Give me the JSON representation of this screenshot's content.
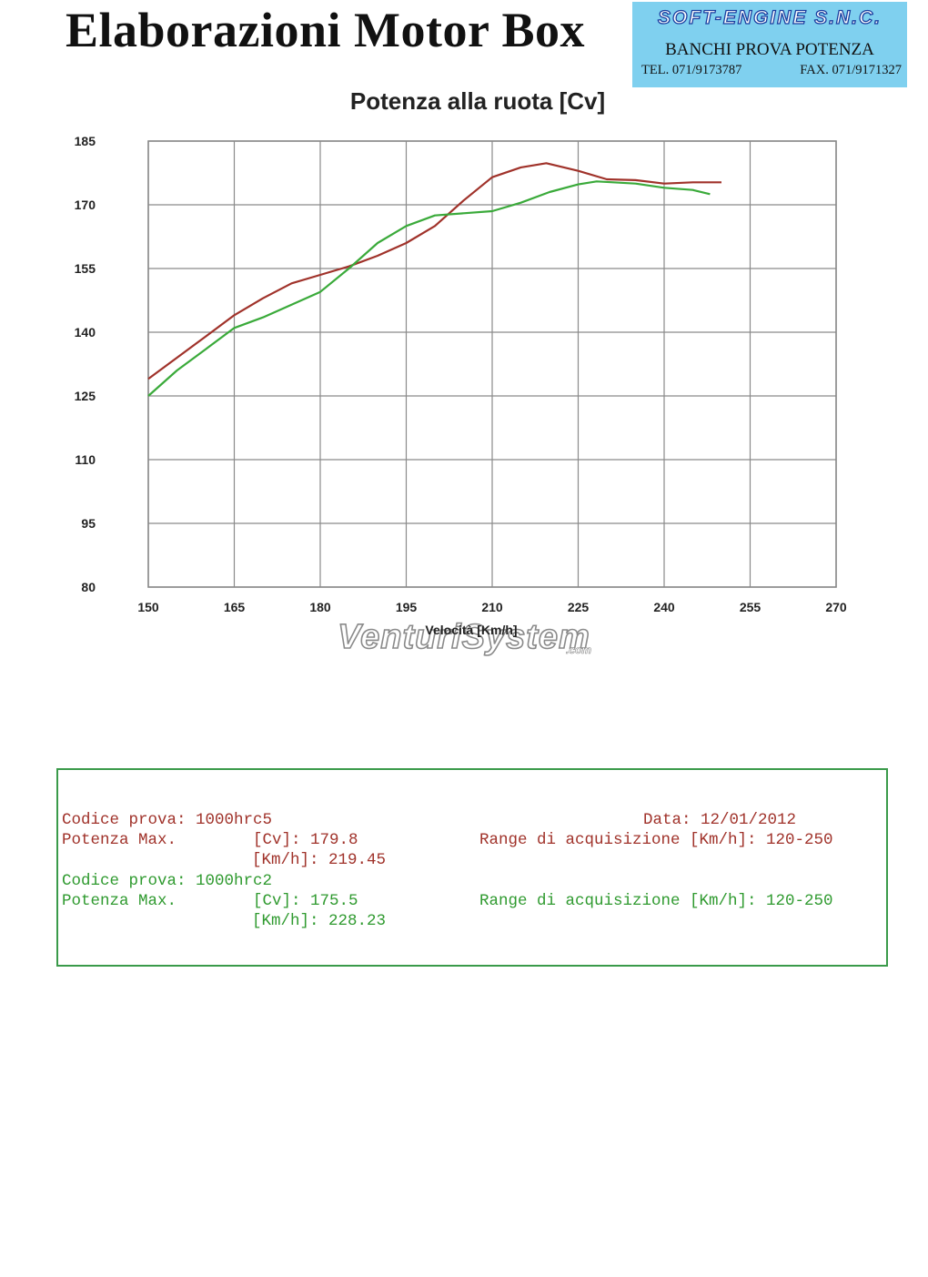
{
  "header": {
    "title": "Elaborazioni Motor Box",
    "stamp": {
      "company": "SOFT-ENGINE S.N.C.",
      "subtitle": "BANCHI PROVA POTENZA",
      "tel": "TEL. 071/9173787",
      "fax": "FAX. 071/9171327"
    }
  },
  "watermark": {
    "text": "VenturiSystem",
    "suffix": ".com"
  },
  "chart_data": {
    "type": "line",
    "title": "Potenza alla ruota  [Cv]",
    "xlabel": "Velocità [Km/h]",
    "ylabel": "",
    "xlim": [
      150,
      270
    ],
    "ylim": [
      80,
      185
    ],
    "x_ticks": [
      "150",
      "165",
      "180",
      "195",
      "210",
      "225",
      "240",
      "255",
      "270"
    ],
    "y_ticks": [
      "185",
      "170",
      "155",
      "140",
      "125",
      "110",
      "95",
      "80"
    ],
    "grid": true,
    "series": [
      {
        "color": "#a0322a",
        "x": [
          150,
          155,
          160,
          165,
          170,
          175,
          180,
          185,
          190,
          195,
          200,
          205,
          210,
          215,
          219.45,
          225,
          230,
          235,
          240,
          245,
          250
        ],
        "y": [
          129,
          134,
          139,
          144,
          148,
          151.5,
          153.5,
          155.5,
          158,
          161,
          165,
          171,
          176.5,
          178.8,
          179.8,
          178,
          176,
          175.8,
          175,
          175.3,
          175.3
        ]
      },
      {
        "color": "#3aaa3a",
        "x": [
          150,
          155,
          160,
          165,
          170,
          175,
          180,
          185,
          190,
          195,
          200,
          205,
          210,
          215,
          220,
          225,
          228.23,
          235,
          240,
          245,
          248
        ],
        "y": [
          125,
          131,
          136,
          141,
          143.5,
          146.5,
          149.5,
          155,
          161,
          165,
          167.5,
          168,
          168.5,
          170.5,
          173,
          174.8,
          175.5,
          175,
          174,
          173.5,
          172.5
        ]
      }
    ]
  },
  "results": {
    "test1": {
      "code_line": "Codice prova: 1000hrc5",
      "date_line": "Data: 12/01/2012",
      "power_line": "Potenza Max.        [Cv]: 179.8",
      "range_line": "Range di acquisizione [Km/h]: 120-250",
      "speed_line": "[Km/h]: 219.45"
    },
    "test2": {
      "code_line": "Codice prova: 1000hrc2",
      "power_line": "Potenza Max.        [Cv]: 175.5",
      "range_line": "Range di acquisizione [Km/h]: 120-250",
      "speed_line": "[Km/h]: 228.23"
    }
  }
}
